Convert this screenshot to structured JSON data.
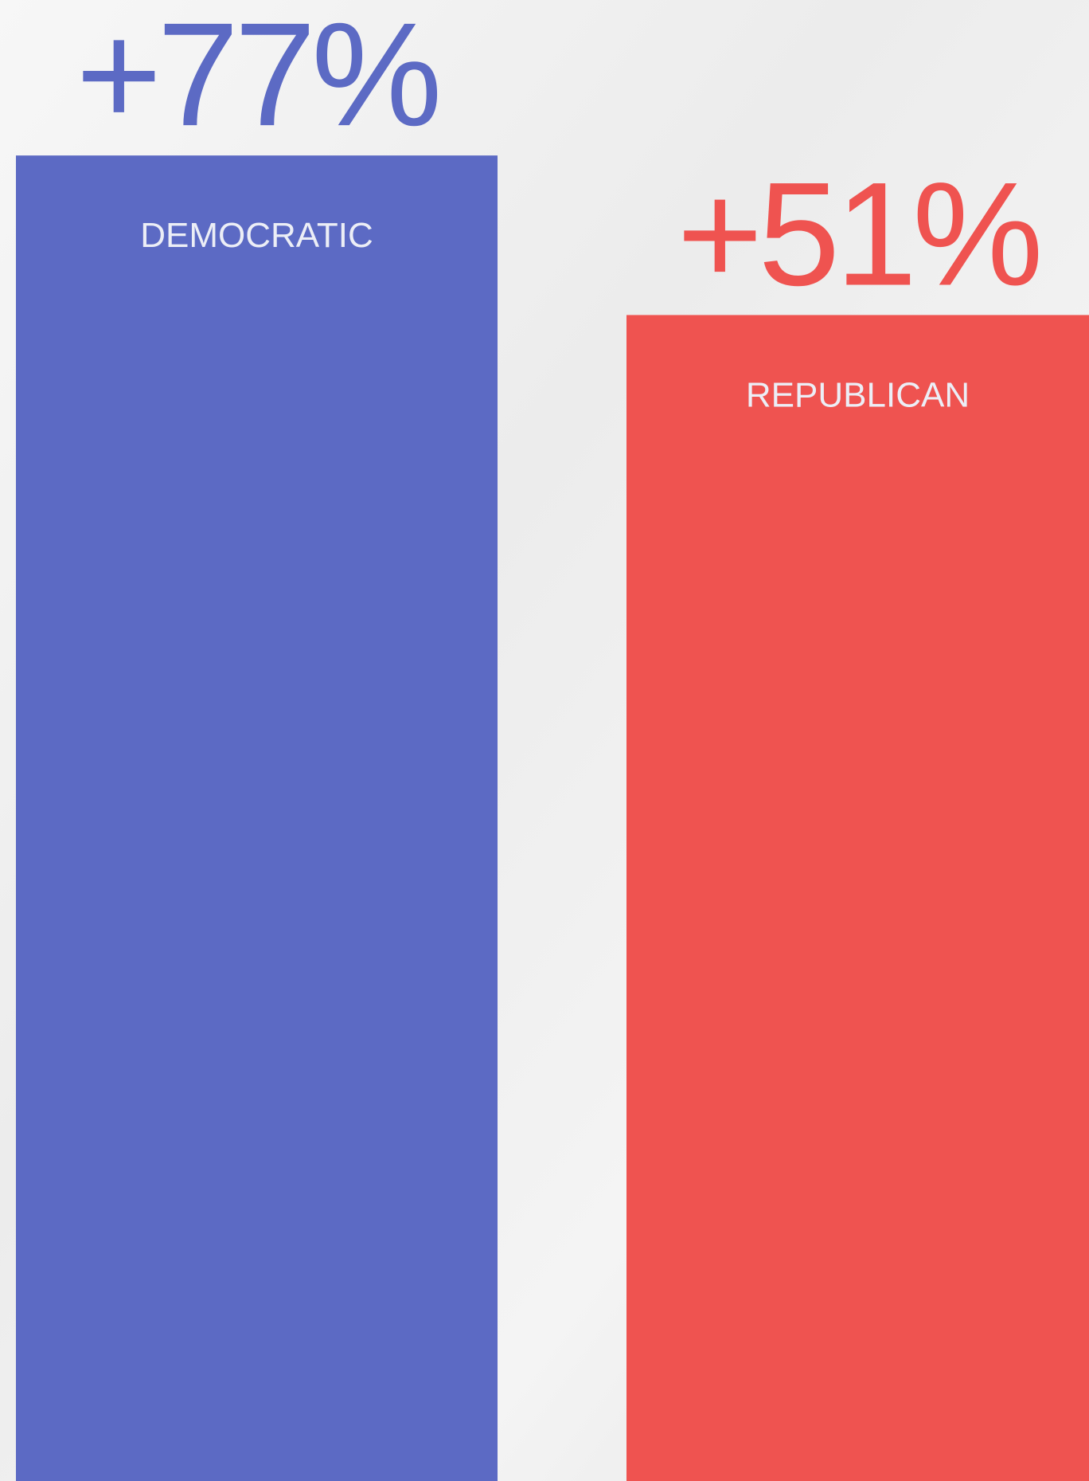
{
  "chart_data": {
    "type": "bar",
    "categories": [
      "DEMOCRATIC",
      "REPUBLICAN"
    ],
    "values": [
      77,
      51
    ],
    "value_labels": [
      "+77%",
      "+51%"
    ],
    "colors": [
      "#5c6ac4",
      "#ef5350"
    ],
    "ylim": [
      -139,
      100
    ]
  }
}
